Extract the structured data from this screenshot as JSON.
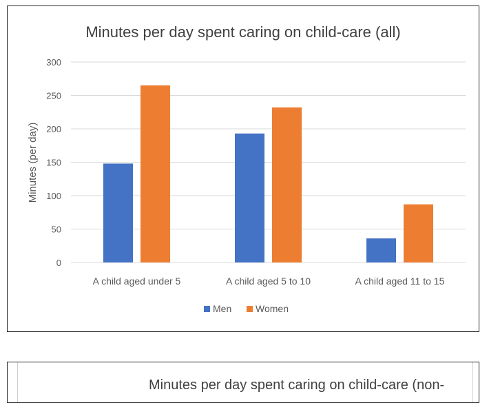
{
  "chart_data": [
    {
      "type": "bar",
      "title": "Minutes per day spent caring on child-care (all)",
      "xlabel": "",
      "ylabel": "Minutes (per day)",
      "categories": [
        "A child aged under 5",
        "A child aged 5 to 10",
        "A child aged 11 to 15"
      ],
      "series": [
        {
          "name": "Men",
          "color": "#4472C4",
          "values": [
            148,
            193,
            36
          ]
        },
        {
          "name": "Women",
          "color": "#ED7D31",
          "values": [
            265,
            232,
            87
          ]
        }
      ],
      "ylim": [
        0,
        300
      ],
      "yticks": [
        "0",
        "50",
        "100",
        "150",
        "200",
        "250",
        "300"
      ],
      "grid": true,
      "legend": "bottom"
    },
    {
      "type": "bar",
      "title": "Minutes per day spent caring on child-care (non-"
    }
  ],
  "colors": {
    "grid": "#d9d9d9",
    "text": "#595959",
    "title": "#404040"
  }
}
